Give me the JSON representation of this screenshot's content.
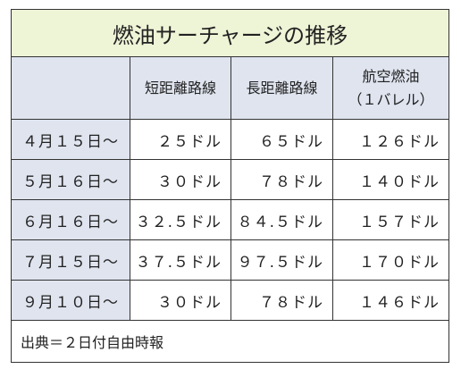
{
  "title": "燃油サーチャージの推移",
  "headers": [
    [
      "短距離路線"
    ],
    [
      "長距離路線"
    ],
    [
      "航空燃油",
      "（１バレル）"
    ]
  ],
  "rows": [
    {
      "date": "４月１５日～",
      "values": [
        "２５ドル",
        "６５ドル",
        "１２６ドル"
      ]
    },
    {
      "date": "５月１６日～",
      "values": [
        "３０ドル",
        "７８ドル",
        "１４０ドル"
      ]
    },
    {
      "date": "６月１６日～",
      "values": [
        "３２.５ドル",
        "８４.５ドル",
        "１５７ドル"
      ]
    },
    {
      "date": "７月１５日～",
      "values": [
        "３７.５ドル",
        "９７.５ドル",
        "１７０ドル"
      ]
    },
    {
      "date": "９月１０日～",
      "values": [
        "３０ドル",
        "７８ドル",
        "１４６ドル"
      ]
    }
  ],
  "source": "出典＝２日付自由時報"
}
